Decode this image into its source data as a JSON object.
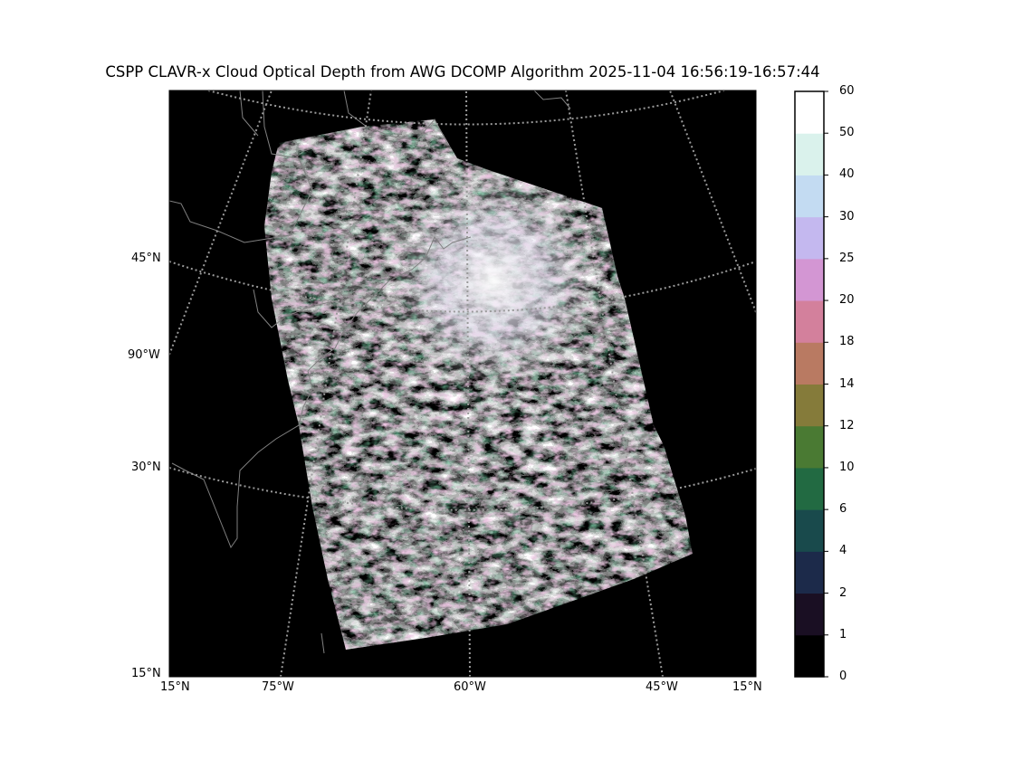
{
  "title": "CSPP CLAVR-x Cloud Optical Depth from AWG DCOMP Algorithm 2025-11-04 16:56:19-16:57:44",
  "left_labels": [
    "45°N",
    "90°W",
    "30°N",
    "15°N"
  ],
  "bottom_labels": [
    "15°N",
    "75°W",
    "60°W",
    "45°W",
    "15°N"
  ],
  "colorbar": {
    "ticks": [
      "0",
      "1",
      "2",
      "4",
      "6",
      "10",
      "12",
      "14",
      "18",
      "20",
      "25",
      "30",
      "40",
      "50",
      "60"
    ],
    "colors": [
      "#000000",
      "#1a0f23",
      "#1c2a4a",
      "#194a4c",
      "#226a42",
      "#4a7a33",
      "#857b3a",
      "#b97a62",
      "#d3809c",
      "#d396d3",
      "#c4b8ef",
      "#c3dbf2",
      "#daf2ec",
      "#ffffff"
    ]
  },
  "map": {
    "background": "#000000",
    "coastline_color": "#808080",
    "gridline_color": "#9a9a9a",
    "gridline_style": "dotted"
  }
}
